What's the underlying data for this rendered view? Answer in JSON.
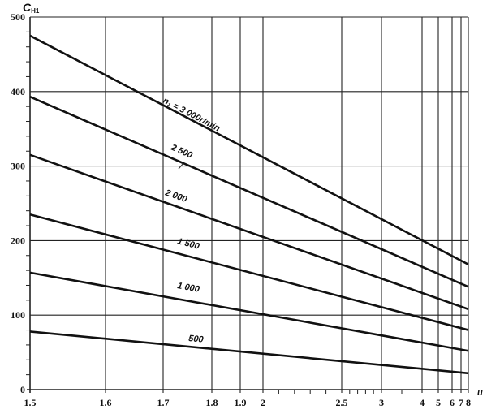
{
  "chart_data": {
    "type": "line",
    "title": "",
    "ylabel": "C_H1",
    "ylabel_main": "C",
    "ylabel_sub": "H1",
    "xlabel": "u",
    "ylim": [
      0,
      500
    ],
    "xlim": [
      1.5,
      8
    ],
    "x_scale": "nonlinear (custom nomogram scale)",
    "grid": true,
    "y_ticks": [
      0,
      100,
      200,
      300,
      400,
      500
    ],
    "y_tick_labels": [
      "0",
      "100",
      "200",
      "300",
      "400",
      "500"
    ],
    "x_ticks": [
      1.5,
      1.6,
      1.7,
      1.8,
      1.9,
      2,
      2.5,
      3,
      4,
      5,
      6,
      7,
      8
    ],
    "x_tick_labels": [
      "1.5",
      "1.6",
      "1.7",
      "1.8",
      "1.9",
      "2",
      "2.5",
      "3",
      "4",
      "5",
      "6",
      "7",
      "8"
    ],
    "x": [
      1.5,
      8
    ],
    "series": [
      {
        "name": "n₁ = 3 000r/min",
        "values": [
          475,
          168
        ]
      },
      {
        "name": "2 500",
        "values": [
          393,
          138
        ]
      },
      {
        "name": "2 000",
        "values": [
          315,
          108
        ]
      },
      {
        "name": "1 500",
        "values": [
          235,
          80
        ]
      },
      {
        "name": "1 000",
        "values": [
          157,
          52
        ]
      },
      {
        "name": "500",
        "values": [
          78,
          22
        ]
      }
    ],
    "colors": {
      "line": "#111111",
      "grid": "#222222",
      "background": "#ffffff"
    }
  }
}
